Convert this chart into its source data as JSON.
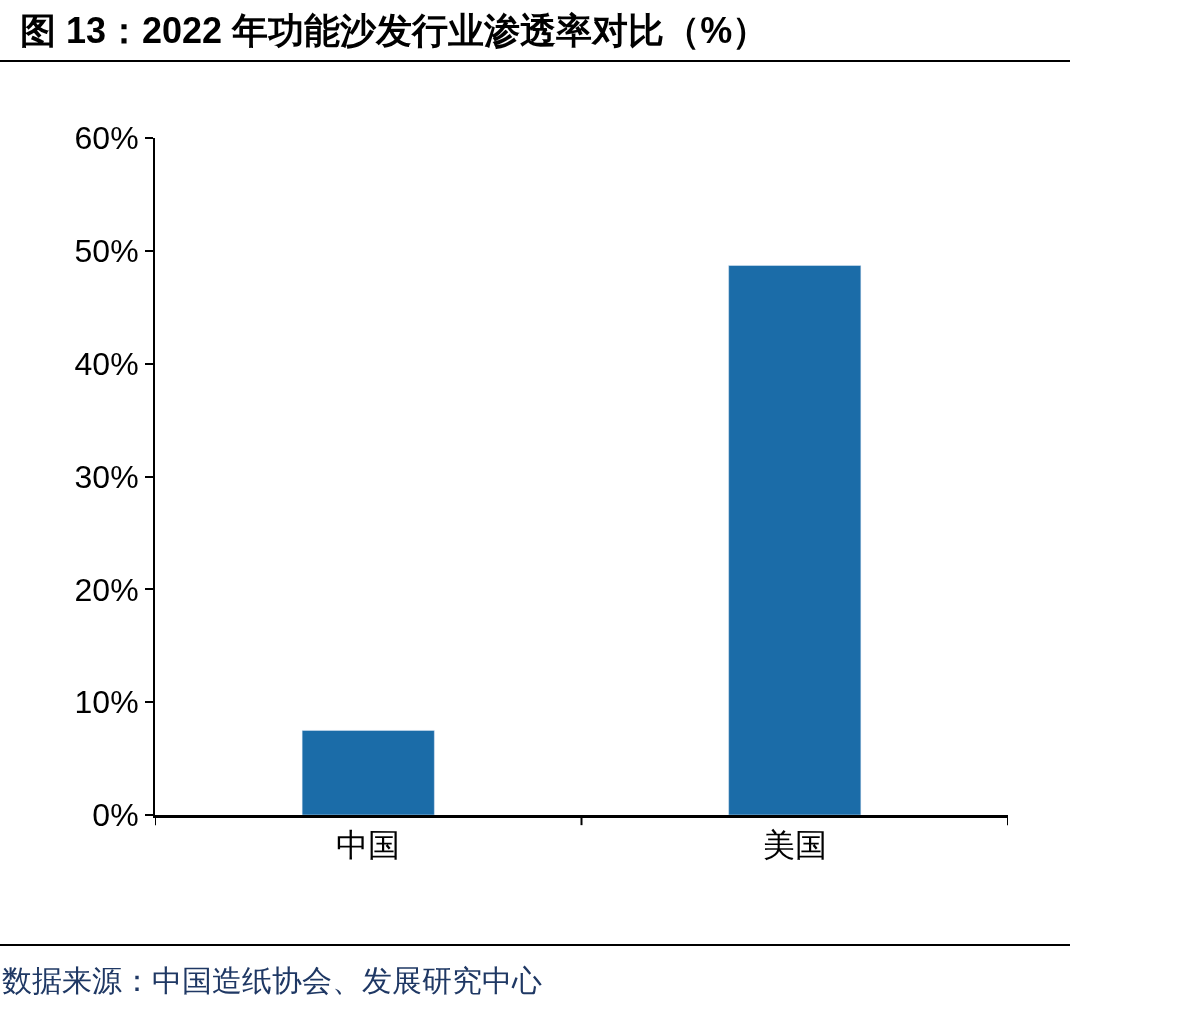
{
  "chart_data": {
    "type": "bar",
    "title": "图 13：2022 年功能沙发行业渗透率对比（%）",
    "categories": [
      "中国",
      "美国"
    ],
    "values": [
      7.5,
      48.7
    ],
    "color": "#1b6ca8",
    "ylim": [
      0,
      60
    ],
    "yticks": [
      {
        "value": 0,
        "label": "0%"
      },
      {
        "value": 10,
        "label": "10%"
      },
      {
        "value": 20,
        "label": "20%"
      },
      {
        "value": 30,
        "label": "30%"
      },
      {
        "value": 40,
        "label": "40%"
      },
      {
        "value": 50,
        "label": "50%"
      },
      {
        "value": 60,
        "label": "60%"
      }
    ],
    "annotations": [
      "数据来源：中国造纸协会、发展研究中心"
    ]
  }
}
